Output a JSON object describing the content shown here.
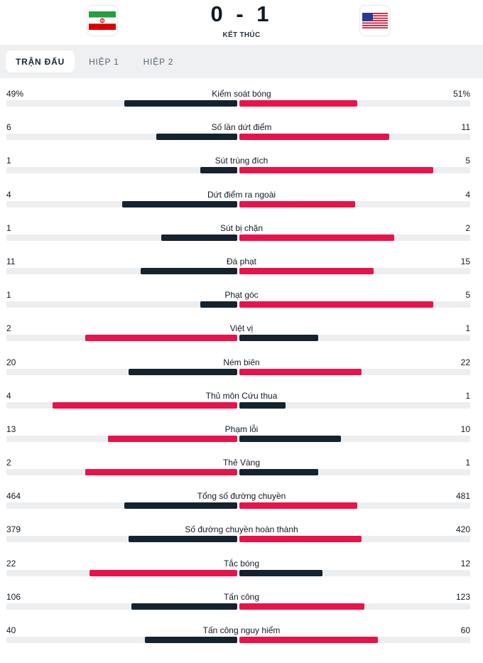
{
  "match": {
    "home_flag": "iran-flag",
    "away_flag": "usa-flag",
    "score": "0 - 1",
    "status": "KẾT THÚC"
  },
  "tabs": [
    {
      "label": "TRẬN ĐẤU",
      "active": true
    },
    {
      "label": "HIỆP 1",
      "active": false
    },
    {
      "label": "HIỆP 2",
      "active": false
    }
  ],
  "colors": {
    "home": "#15232e",
    "away": "#e8134a",
    "track": "#eceef0"
  },
  "stats": [
    {
      "label": "Kiểm soát bóng",
      "home": "49%",
      "away": "51%",
      "home_fill": 0.49,
      "away_fill": 0.51,
      "leader": "away"
    },
    {
      "label": "Số lần dứt điểm",
      "home": "6",
      "away": "11",
      "home_fill": 0.35,
      "away_fill": 0.65,
      "leader": "away"
    },
    {
      "label": "Sút trúng đích",
      "home": "1",
      "away": "5",
      "home_fill": 0.16,
      "away_fill": 0.84,
      "leader": "away"
    },
    {
      "label": "Dứt điểm ra ngoài",
      "home": "4",
      "away": "4",
      "home_fill": 0.5,
      "away_fill": 0.5,
      "leader": "none"
    },
    {
      "label": "Sút bị chặn",
      "home": "1",
      "away": "2",
      "home_fill": 0.33,
      "away_fill": 0.67,
      "leader": "away"
    },
    {
      "label": "Đá phạt",
      "home": "11",
      "away": "15",
      "home_fill": 0.42,
      "away_fill": 0.58,
      "leader": "away"
    },
    {
      "label": "Phạt góc",
      "home": "1",
      "away": "5",
      "home_fill": 0.16,
      "away_fill": 0.84,
      "leader": "away"
    },
    {
      "label": "Việt vị",
      "home": "2",
      "away": "1",
      "home_fill": 0.66,
      "away_fill": 0.34,
      "leader": "home"
    },
    {
      "label": "Ném biên",
      "home": "20",
      "away": "22",
      "home_fill": 0.47,
      "away_fill": 0.53,
      "leader": "away"
    },
    {
      "label": "Thủ môn Cứu thua",
      "home": "4",
      "away": "1",
      "home_fill": 0.8,
      "away_fill": 0.2,
      "leader": "home"
    },
    {
      "label": "Phạm lỗi",
      "home": "13",
      "away": "10",
      "home_fill": 0.56,
      "away_fill": 0.44,
      "leader": "home"
    },
    {
      "label": "Thẻ Vàng",
      "home": "2",
      "away": "1",
      "home_fill": 0.66,
      "away_fill": 0.34,
      "leader": "home"
    },
    {
      "label": "Tổng số đường chuyền",
      "home": "464",
      "away": "481",
      "home_fill": 0.49,
      "away_fill": 0.51,
      "leader": "away"
    },
    {
      "label": "Số đường chuyền hoàn thành",
      "home": "379",
      "away": "420",
      "home_fill": 0.47,
      "away_fill": 0.53,
      "leader": "away"
    },
    {
      "label": "Tắc bóng",
      "home": "22",
      "away": "12",
      "home_fill": 0.64,
      "away_fill": 0.36,
      "leader": "home"
    },
    {
      "label": "Tấn công",
      "home": "106",
      "away": "123",
      "home_fill": 0.46,
      "away_fill": 0.54,
      "leader": "away"
    },
    {
      "label": "Tấn công nguy hiểm",
      "home": "40",
      "away": "60",
      "home_fill": 0.4,
      "away_fill": 0.6,
      "leader": "away"
    }
  ]
}
